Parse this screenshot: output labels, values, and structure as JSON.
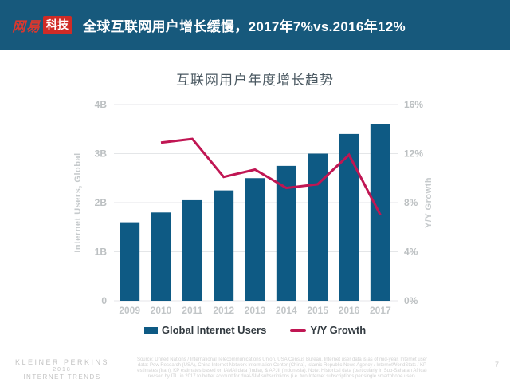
{
  "header": {
    "logo": {
      "brand": "网易",
      "sub": "科技"
    },
    "title": "全球互联网用户增长缓慢，2017年7%vs.2016年12%",
    "colors": {
      "background": "#17597C",
      "logo_red": "#D02B26"
    }
  },
  "chart_data": {
    "type": "bar",
    "title": "互联网用户年度增长趋势",
    "categories": [
      "2009",
      "2010",
      "2011",
      "2012",
      "2013",
      "2014",
      "2015",
      "2016",
      "2017"
    ],
    "series": [
      {
        "name": "Global Internet Users",
        "type": "bar",
        "axis": "left",
        "color": "#0E5A84",
        "values": [
          1.6,
          1.8,
          2.05,
          2.25,
          2.5,
          2.75,
          3.0,
          3.4,
          3.6
        ]
      },
      {
        "name": "Y/Y Growth",
        "type": "line",
        "axis": "right",
        "color": "#C01653",
        "values": [
          null,
          12.9,
          13.2,
          10.1,
          10.7,
          9.2,
          9.5,
          11.9,
          7.0
        ]
      }
    ],
    "left_axis": {
      "label": "Internet Users, Global",
      "min": 0,
      "max": 4,
      "ticks": [
        "0",
        "1B",
        "2B",
        "3B",
        "4B"
      ]
    },
    "right_axis": {
      "label": "Y/Y Growth",
      "min": 0,
      "max": 16,
      "ticks": [
        "0%",
        "4%",
        "8%",
        "12%",
        "16%"
      ]
    },
    "grid": true,
    "legend_position": "bottom",
    "tick_color": "#BCC0C2",
    "grid_color": "#E4E6E8",
    "axis_title_color": "#C6CACC",
    "x_label_color": "#C2C6C8"
  },
  "footer": {
    "brand_lines": [
      "KLEINER PERKINS",
      "2018",
      "INTERNET TRENDS"
    ],
    "source_lines": [
      "Source: United Nations / International Telecommunications Union, USA Census Bureau. Internet user data is as of mid-year. Internet user",
      "data: Pew Research (USA), China Internet Network Information Center (China), Islamic Republic News Agency / InternetWorldStats / KP",
      "estimates (Iran), KP estimates based on IAMAI data (India), & APJII (Indonesia). Note: Historical data (particularly in Sub-Saharan Africa)",
      "revised by ITU in 2017 to better account for dual-SIM subscriptions (i.e. two Internet subscriptions per single smartphone user)."
    ],
    "page_number": "7"
  }
}
